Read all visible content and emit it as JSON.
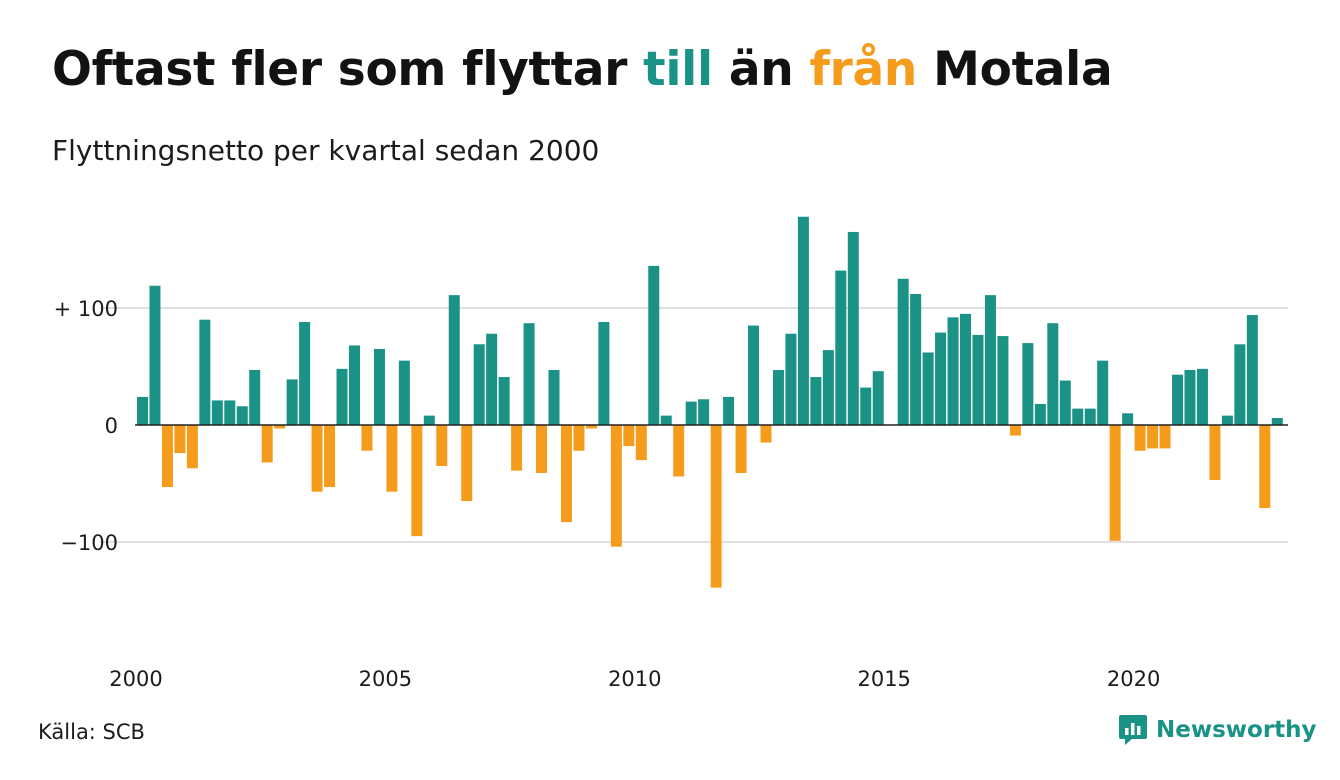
{
  "title": {
    "part1": "Oftast fler som flyttar ",
    "highlight_pos": "till",
    "part2": " än ",
    "highlight_neg": "från",
    "part3": " Motala"
  },
  "subtitle": "Flyttningsnetto per kvartal sedan 2000",
  "source": "Källa: SCB",
  "brand": "Newsworthy",
  "colors": {
    "positive": "#1a9286",
    "negative": "#f59c1c",
    "grid": "#e0e0e0",
    "baseline": "#222222"
  },
  "chart_data": {
    "type": "bar",
    "x_start": "2000 Q1",
    "x_ticks": [
      "2000",
      "2005",
      "2010",
      "2015",
      "2020"
    ],
    "y_ticks": [
      {
        "value": 100,
        "label": "+ 100"
      },
      {
        "value": 0,
        "label": "0"
      },
      {
        "value": -100,
        "label": "−100"
      }
    ],
    "ylim": [
      -150,
      180
    ],
    "grid": true,
    "values": [
      24,
      119,
      -53,
      -24,
      -37,
      90,
      21,
      21,
      16,
      47,
      -32,
      -3,
      39,
      88,
      -57,
      -53,
      48,
      68,
      -22,
      65,
      -57,
      55,
      -95,
      8,
      -35,
      111,
      -65,
      69,
      78,
      41,
      -39,
      87,
      -41,
      47,
      -83,
      -22,
      -3,
      88,
      -104,
      -18,
      -30,
      136,
      8,
      -44,
      20,
      22,
      -139,
      24,
      -41,
      85,
      -15,
      47,
      78,
      178,
      41,
      64,
      132,
      165,
      32,
      46,
      null,
      125,
      112,
      62,
      79,
      92,
      95,
      77,
      111,
      76,
      -9,
      70,
      18,
      87,
      38,
      14,
      14,
      55,
      -99,
      10,
      -22,
      -20,
      -20,
      43,
      47,
      48,
      -47,
      8,
      69,
      94,
      -71,
      6
    ]
  }
}
